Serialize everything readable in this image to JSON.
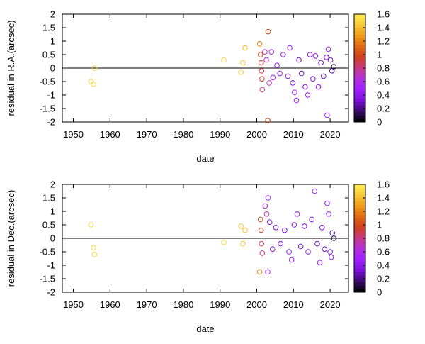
{
  "chart_data": [
    {
      "type": "scatter",
      "xlabel": "date",
      "ylabel": "residual in R.A.(arcsec)",
      "xlim": [
        1947,
        2025
      ],
      "ylim": [
        -2,
        2
      ],
      "xticks": [
        "1950",
        "1960",
        "1970",
        "1980",
        "1990",
        "2000",
        "2010",
        "2020"
      ],
      "yticks": [
        "-2",
        "-1.5",
        "-1",
        "-0.5",
        "0",
        "0.5",
        "1",
        "1.5",
        "2"
      ],
      "zero_line": true,
      "marker": "open-circle",
      "color_scale": {
        "min": 0,
        "max": 1.6,
        "ticks": [
          "0",
          "0.2",
          "0.4",
          "0.6",
          "0.8",
          "1",
          "1.2",
          "1.4",
          "1.6"
        ],
        "palette": [
          "#000000",
          "#3a0a6a",
          "#7a10d8",
          "#a020ff",
          "#b030e0",
          "#c83888",
          "#d04020",
          "#e06810",
          "#f09a18",
          "#f8c838",
          "#ffee50"
        ]
      },
      "points": [
        {
          "x": 1954.8,
          "y": -0.5,
          "c": 1.5
        },
        {
          "x": 1955.5,
          "y": -0.6,
          "c": 1.5
        },
        {
          "x": 1955.8,
          "y": 0.0,
          "c": 1.5
        },
        {
          "x": 1991.0,
          "y": 0.3,
          "c": 1.5
        },
        {
          "x": 1995.7,
          "y": -0.15,
          "c": 1.45
        },
        {
          "x": 1996.2,
          "y": 0.2,
          "c": 1.45
        },
        {
          "x": 1996.8,
          "y": 0.75,
          "c": 1.4
        },
        {
          "x": 2000.8,
          "y": 0.9,
          "c": 1.2
        },
        {
          "x": 2001.0,
          "y": 0.5,
          "c": 1.0
        },
        {
          "x": 2001.2,
          "y": 0.2,
          "c": 0.95
        },
        {
          "x": 2001.3,
          "y": -0.1,
          "c": 0.9
        },
        {
          "x": 2001.4,
          "y": -0.4,
          "c": 0.95
        },
        {
          "x": 2001.5,
          "y": -0.8,
          "c": 0.8
        },
        {
          "x": 2002.2,
          "y": 0.6,
          "c": 0.7
        },
        {
          "x": 2002.6,
          "y": 0.3,
          "c": 0.6
        },
        {
          "x": 2003.1,
          "y": 1.35,
          "c": 1.0
        },
        {
          "x": 2003.0,
          "y": -1.95,
          "c": 1.0
        },
        {
          "x": 2003.4,
          "y": -0.55,
          "c": 0.7
        },
        {
          "x": 2004.0,
          "y": 0.6,
          "c": 0.6
        },
        {
          "x": 2004.4,
          "y": -0.35,
          "c": 0.5
        },
        {
          "x": 2005.5,
          "y": 0.1,
          "c": 0.4
        },
        {
          "x": 2006.3,
          "y": -0.2,
          "c": 0.4
        },
        {
          "x": 2007.2,
          "y": 0.5,
          "c": 0.45
        },
        {
          "x": 2008.5,
          "y": -0.3,
          "c": 0.35
        },
        {
          "x": 2009.0,
          "y": 0.75,
          "c": 0.5
        },
        {
          "x": 2009.8,
          "y": -0.55,
          "c": 0.4
        },
        {
          "x": 2010.3,
          "y": -0.9,
          "c": 0.5
        },
        {
          "x": 2010.8,
          "y": -1.2,
          "c": 0.5
        },
        {
          "x": 2011.5,
          "y": 0.3,
          "c": 0.35
        },
        {
          "x": 2012.2,
          "y": -0.2,
          "c": 0.3
        },
        {
          "x": 2013.2,
          "y": -0.7,
          "c": 0.4
        },
        {
          "x": 2013.9,
          "y": -1.0,
          "c": 0.45
        },
        {
          "x": 2014.5,
          "y": 0.5,
          "c": 0.4
        },
        {
          "x": 2015.3,
          "y": -0.4,
          "c": 0.35
        },
        {
          "x": 2016.0,
          "y": 0.45,
          "c": 0.4
        },
        {
          "x": 2016.8,
          "y": -0.7,
          "c": 0.4
        },
        {
          "x": 2017.5,
          "y": 0.2,
          "c": 0.3
        },
        {
          "x": 2018.2,
          "y": -0.3,
          "c": 0.3
        },
        {
          "x": 2019.0,
          "y": 0.4,
          "c": 0.35
        },
        {
          "x": 2019.2,
          "y": -1.75,
          "c": 0.5
        },
        {
          "x": 2019.5,
          "y": 0.7,
          "c": 0.5
        },
        {
          "x": 2020.1,
          "y": 0.3,
          "c": 0.35
        },
        {
          "x": 2020.5,
          "y": -0.1,
          "c": 0.2
        },
        {
          "x": 2021.0,
          "y": 0.05,
          "c": 0.1
        }
      ]
    },
    {
      "type": "scatter",
      "xlabel": "date",
      "ylabel": "residual in Dec.(arcsec)",
      "xlim": [
        1947,
        2025
      ],
      "ylim": [
        -2,
        2
      ],
      "xticks": [
        "1950",
        "1960",
        "1970",
        "1980",
        "1990",
        "2000",
        "2010",
        "2020"
      ],
      "yticks": [
        "-2",
        "-1.5",
        "-1",
        "-0.5",
        "0",
        "0.5",
        "1",
        "1.5",
        "2"
      ],
      "zero_line": true,
      "marker": "open-circle",
      "color_scale": {
        "min": 0,
        "max": 1.6,
        "ticks": [
          "0",
          "0.2",
          "0.4",
          "0.6",
          "0.8",
          "1",
          "1.2",
          "1.4",
          "1.6"
        ],
        "palette": [
          "#000000",
          "#3a0a6a",
          "#7a10d8",
          "#a020ff",
          "#b030e0",
          "#c83888",
          "#d04020",
          "#e06810",
          "#f09a18",
          "#f8c838",
          "#ffee50"
        ]
      },
      "points": [
        {
          "x": 1954.8,
          "y": 0.5,
          "c": 1.5
        },
        {
          "x": 1955.5,
          "y": -0.35,
          "c": 1.5
        },
        {
          "x": 1955.8,
          "y": -0.6,
          "c": 1.5
        },
        {
          "x": 1991.0,
          "y": -0.15,
          "c": 1.5
        },
        {
          "x": 1995.7,
          "y": 0.45,
          "c": 1.45
        },
        {
          "x": 1996.2,
          "y": -0.2,
          "c": 1.45
        },
        {
          "x": 1996.8,
          "y": 0.3,
          "c": 1.4
        },
        {
          "x": 2000.8,
          "y": -1.25,
          "c": 1.2
        },
        {
          "x": 2001.0,
          "y": 0.7,
          "c": 1.0
        },
        {
          "x": 2001.2,
          "y": 0.3,
          "c": 0.95
        },
        {
          "x": 2001.3,
          "y": -0.2,
          "c": 0.9
        },
        {
          "x": 2001.5,
          "y": -0.55,
          "c": 0.8
        },
        {
          "x": 2002.3,
          "y": 1.2,
          "c": 0.6
        },
        {
          "x": 2002.7,
          "y": 0.9,
          "c": 0.7
        },
        {
          "x": 2003.1,
          "y": 1.5,
          "c": 0.5
        },
        {
          "x": 2003.0,
          "y": -1.25,
          "c": 0.5
        },
        {
          "x": 2003.5,
          "y": 0.6,
          "c": 0.4
        },
        {
          "x": 2004.3,
          "y": -0.4,
          "c": 0.4
        },
        {
          "x": 2005.2,
          "y": 0.4,
          "c": 0.35
        },
        {
          "x": 2006.5,
          "y": -0.2,
          "c": 0.4
        },
        {
          "x": 2007.6,
          "y": 0.3,
          "c": 0.35
        },
        {
          "x": 2008.8,
          "y": -0.5,
          "c": 0.4
        },
        {
          "x": 2009.5,
          "y": -0.8,
          "c": 0.45
        },
        {
          "x": 2010.2,
          "y": 0.5,
          "c": 0.4
        },
        {
          "x": 2011.0,
          "y": 0.9,
          "c": 0.4
        },
        {
          "x": 2012.0,
          "y": -0.3,
          "c": 0.3
        },
        {
          "x": 2013.0,
          "y": 0.45,
          "c": 0.35
        },
        {
          "x": 2014.0,
          "y": -0.5,
          "c": 0.4
        },
        {
          "x": 2015.0,
          "y": 0.7,
          "c": 0.4
        },
        {
          "x": 2015.8,
          "y": 1.75,
          "c": 0.45
        },
        {
          "x": 2016.5,
          "y": -0.2,
          "c": 0.3
        },
        {
          "x": 2017.2,
          "y": -0.9,
          "c": 0.45
        },
        {
          "x": 2017.8,
          "y": 0.4,
          "c": 0.35
        },
        {
          "x": 2018.5,
          "y": -0.4,
          "c": 0.3
        },
        {
          "x": 2019.2,
          "y": 1.3,
          "c": 0.4
        },
        {
          "x": 2019.6,
          "y": 0.9,
          "c": 0.45
        },
        {
          "x": 2020.0,
          "y": -0.5,
          "c": 0.3
        },
        {
          "x": 2020.3,
          "y": -0.7,
          "c": 0.4
        },
        {
          "x": 2020.6,
          "y": 0.2,
          "c": 0.2
        },
        {
          "x": 2021.0,
          "y": 0.0,
          "c": 0.1
        }
      ]
    }
  ]
}
